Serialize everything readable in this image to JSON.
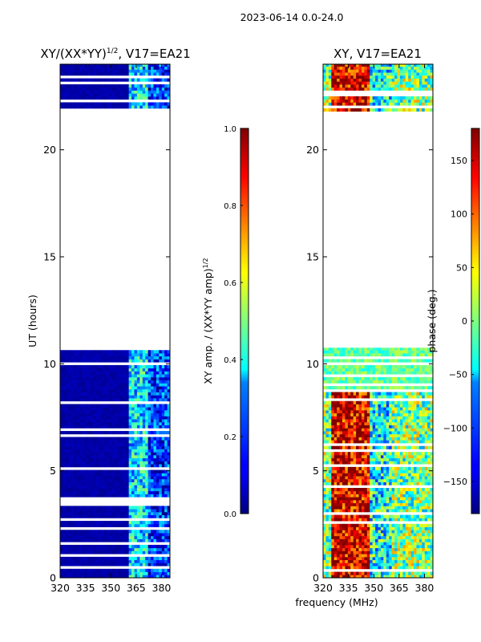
{
  "figure": {
    "suptitle": "2023-06-14 0.0-24.0",
    "xlabel": "frequency (MHz)"
  },
  "chart_data": [
    {
      "type": "heatmap",
      "title_main": "XY/(XX*YY)",
      "title_sup": "1/2",
      "title_rest": ", V17=EA21",
      "xlabel": "",
      "ylabel": "UT (hours)",
      "xlim": [
        320,
        385
      ],
      "ylim": [
        0,
        24
      ],
      "xticks": [
        320,
        335,
        350,
        365,
        380
      ],
      "yticks": [
        0,
        5,
        10,
        15,
        20
      ],
      "colormap": "jet",
      "colorbar": {
        "label_main": "XY amp. / (XX*YY amp)",
        "label_sup": "1/2",
        "range": [
          0.0,
          1.0
        ],
        "ticks": [
          0.0,
          0.2,
          0.4,
          0.6,
          0.8,
          1.0
        ],
        "tick_labels": [
          "0.0",
          "0.2",
          "0.4",
          "0.6",
          "0.8",
          "1.0"
        ]
      },
      "data_time_ranges_hours": [
        [
          0,
          10.75
        ],
        [
          21.8,
          24
        ]
      ],
      "features": [
        {
          "freq_range_MHz": [
            320,
            361
          ],
          "level": 0.02
        },
        {
          "freq_range_MHz": [
            361,
            372
          ],
          "level": 0.35
        },
        {
          "freq_range_MHz": [
            372,
            385
          ],
          "level": 0.18
        }
      ]
    },
    {
      "type": "heatmap",
      "title_main": "XY, V17=EA21",
      "xlabel": "",
      "ylabel": "",
      "xlim": [
        320,
        385
      ],
      "ylim": [
        0,
        24
      ],
      "xticks": [
        320,
        335,
        350,
        365,
        380
      ],
      "yticks": [
        0,
        5,
        10,
        15,
        20
      ],
      "colormap": "jet",
      "colorbar": {
        "label_main": "phase (deg.)",
        "range": [
          -180,
          180
        ],
        "ticks": [
          -150,
          -100,
          -50,
          0,
          50,
          100,
          150
        ],
        "tick_labels": [
          "−150",
          "−100",
          "−50",
          "0",
          "50",
          "100",
          "150"
        ]
      },
      "data_time_ranges_hours": [
        [
          0,
          10.75
        ],
        [
          21.8,
          24
        ]
      ],
      "features": [
        {
          "freq_range_MHz": [
            325,
            348
          ],
          "phase_deg": 150
        },
        {
          "freq_range_MHz": [
            348,
            360
          ],
          "phase_deg": -40
        },
        {
          "freq_range_MHz": [
            360,
            385
          ],
          "phase_deg": 0
        }
      ]
    }
  ]
}
